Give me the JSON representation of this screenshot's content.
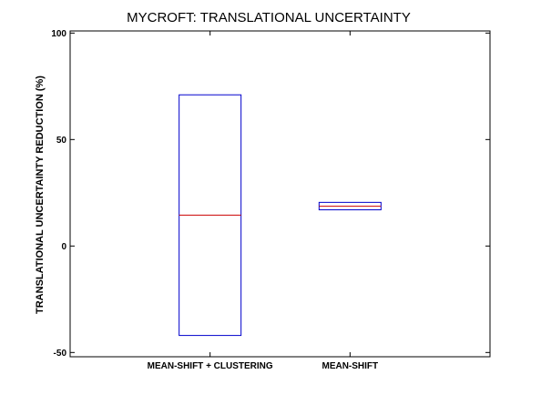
{
  "chart_data": {
    "type": "box",
    "title": "MYCROFT: TRANSLATIONAL UNCERTAINTY",
    "xlabel": "",
    "ylabel": "TRANSLATIONAL UNCERTAINTY REDUCTION (%)",
    "ylim": [
      -52,
      101
    ],
    "yticks": [
      -50,
      0,
      50,
      100
    ],
    "ytick_labels": [
      "-50",
      "0",
      "50",
      "100"
    ],
    "grid": false,
    "legend": "none",
    "categories": [
      "MEAN-SHIFT + CLUSTERING",
      "MEAN-SHIFT"
    ],
    "boxes": [
      {
        "category": "MEAN-SHIFT + CLUSTERING",
        "low": -42,
        "median": 14.5,
        "high": 71
      },
      {
        "category": "MEAN-SHIFT",
        "low": 17,
        "median": 18.7,
        "high": 20.5
      }
    ],
    "colors": {
      "box": "#0000cc",
      "median": "#cc0000",
      "axis": "#000000"
    }
  }
}
